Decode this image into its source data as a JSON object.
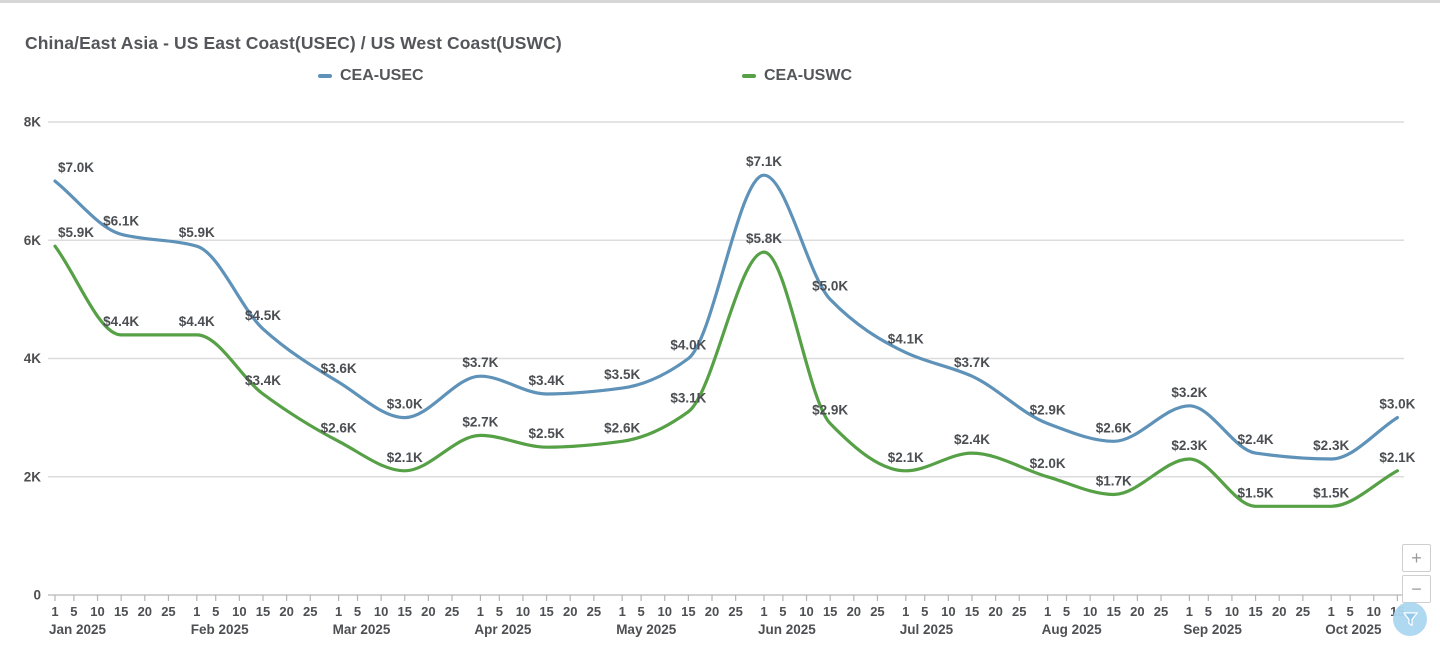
{
  "title": "China/East Asia - US East Coast(USEC) / US West Coast(USWC)",
  "colors": {
    "usec_line": "#5f92b8",
    "uswc_line": "#56a046",
    "grid": "#dcdcdc",
    "axis": "#c4c4c4",
    "tick": "#b5b5b5",
    "axis_text": "#4e4f52",
    "data_label": "#4b4e52",
    "fab_bg": "#abd6f1",
    "fab_glyph": "#8ec6ea"
  },
  "legend": {
    "items": [
      {
        "label": "CEA-USEC",
        "color": "#5f92b8"
      },
      {
        "label": "CEA-USWC",
        "color": "#56a046"
      }
    ]
  },
  "controls": {
    "zoom_in_label": "+",
    "zoom_out_label": "−",
    "filter_icon": "funnel-icon"
  },
  "chart_data": {
    "type": "line",
    "title": "China/East Asia - US East Coast(USEC) / US West Coast(USWC)",
    "xlabel": "",
    "ylabel": "",
    "ylim": [
      0,
      8000
    ],
    "grid": true,
    "legend_position": "top",
    "yticks": [
      {
        "value": 8000,
        "label": "8K"
      },
      {
        "value": 6000,
        "label": "6K"
      },
      {
        "value": 4000,
        "label": "4K"
      },
      {
        "value": 2000,
        "label": "2K"
      },
      {
        "value": 0,
        "label": "0"
      }
    ],
    "months": [
      {
        "label": "Jan 2025",
        "day_ticks": [
          1,
          5,
          10,
          15,
          20,
          25
        ]
      },
      {
        "label": "Feb 2025",
        "day_ticks": [
          1,
          5,
          10,
          15,
          20,
          25
        ]
      },
      {
        "label": "Mar 2025",
        "day_ticks": [
          1,
          5,
          10,
          15,
          20,
          25
        ]
      },
      {
        "label": "Apr 2025",
        "day_ticks": [
          1,
          5,
          10,
          15,
          20,
          25
        ]
      },
      {
        "label": "May 2025",
        "day_ticks": [
          1,
          5,
          10,
          15,
          20,
          25
        ]
      },
      {
        "label": "Jun 2025",
        "day_ticks": [
          1,
          5,
          10,
          15,
          20,
          25
        ]
      },
      {
        "label": "Jul 2025",
        "day_ticks": [
          1,
          5,
          10,
          15,
          20,
          25
        ]
      },
      {
        "label": "Aug 2025",
        "day_ticks": [
          1,
          5,
          10,
          15,
          20,
          25
        ]
      },
      {
        "label": "Sep 2025",
        "day_ticks": [
          1,
          5,
          10,
          15,
          20,
          25
        ]
      },
      {
        "label": "Oct 2025",
        "day_ticks": [
          1,
          5,
          10,
          15
        ]
      }
    ],
    "series": [
      {
        "name": "CEA-USEC",
        "color": "#5f92b8",
        "points": [
          {
            "month": "Jan 2025",
            "day": 1,
            "value": 7000,
            "label": "$7.0K"
          },
          {
            "month": "Jan 2025",
            "day": 15,
            "value": 6100,
            "label": "$6.1K"
          },
          {
            "month": "Feb 2025",
            "day": 1,
            "value": 5900,
            "label": "$5.9K"
          },
          {
            "month": "Feb 2025",
            "day": 15,
            "value": 4500,
            "label": "$4.5K"
          },
          {
            "month": "Mar 2025",
            "day": 1,
            "value": 3600,
            "label": "$3.6K"
          },
          {
            "month": "Mar 2025",
            "day": 15,
            "value": 3000,
            "label": "$3.0K"
          },
          {
            "month": "Apr 2025",
            "day": 1,
            "value": 3700,
            "label": "$3.7K"
          },
          {
            "month": "Apr 2025",
            "day": 15,
            "value": 3400,
            "label": "$3.4K"
          },
          {
            "month": "May 2025",
            "day": 1,
            "value": 3500,
            "label": "$3.5K"
          },
          {
            "month": "May 2025",
            "day": 15,
            "value": 4000,
            "label": "$4.0K"
          },
          {
            "month": "Jun 2025",
            "day": 1,
            "value": 7100,
            "label": "$7.1K"
          },
          {
            "month": "Jun 2025",
            "day": 15,
            "value": 5000,
            "label": "$5.0K"
          },
          {
            "month": "Jul 2025",
            "day": 1,
            "value": 4100,
            "label": "$4.1K"
          },
          {
            "month": "Jul 2025",
            "day": 15,
            "value": 3700,
            "label": "$3.7K"
          },
          {
            "month": "Aug 2025",
            "day": 1,
            "value": 2900,
            "label": "$2.9K"
          },
          {
            "month": "Aug 2025",
            "day": 15,
            "value": 2600,
            "label": "$2.6K"
          },
          {
            "month": "Sep 2025",
            "day": 1,
            "value": 3200,
            "label": "$3.2K"
          },
          {
            "month": "Sep 2025",
            "day": 15,
            "value": 2400,
            "label": "$2.4K"
          },
          {
            "month": "Oct 2025",
            "day": 1,
            "value": 2300,
            "label": "$2.3K"
          },
          {
            "month": "Oct 2025",
            "day": 15,
            "value": 3000,
            "label": "$3.0K"
          }
        ]
      },
      {
        "name": "CEA-USWC",
        "color": "#56a046",
        "points": [
          {
            "month": "Jan 2025",
            "day": 1,
            "value": 5900,
            "label": "$5.9K"
          },
          {
            "month": "Jan 2025",
            "day": 15,
            "value": 4400,
            "label": "$4.4K"
          },
          {
            "month": "Feb 2025",
            "day": 1,
            "value": 4400,
            "label": "$4.4K"
          },
          {
            "month": "Feb 2025",
            "day": 15,
            "value": 3400,
            "label": "$3.4K"
          },
          {
            "month": "Mar 2025",
            "day": 1,
            "value": 2600,
            "label": "$2.6K"
          },
          {
            "month": "Mar 2025",
            "day": 15,
            "value": 2100,
            "label": "$2.1K"
          },
          {
            "month": "Apr 2025",
            "day": 1,
            "value": 2700,
            "label": "$2.7K"
          },
          {
            "month": "Apr 2025",
            "day": 15,
            "value": 2500,
            "label": "$2.5K"
          },
          {
            "month": "May 2025",
            "day": 1,
            "value": 2600,
            "label": "$2.6K"
          },
          {
            "month": "May 2025",
            "day": 15,
            "value": 3100,
            "label": "$3.1K"
          },
          {
            "month": "Jun 2025",
            "day": 1,
            "value": 5800,
            "label": "$5.8K"
          },
          {
            "month": "Jun 2025",
            "day": 15,
            "value": 2900,
            "label": "$2.9K"
          },
          {
            "month": "Jul 2025",
            "day": 1,
            "value": 2100,
            "label": "$2.1K"
          },
          {
            "month": "Jul 2025",
            "day": 15,
            "value": 2400,
            "label": "$2.4K"
          },
          {
            "month": "Aug 2025",
            "day": 1,
            "value": 2000,
            "label": "$2.0K"
          },
          {
            "month": "Aug 2025",
            "day": 15,
            "value": 1700,
            "label": "$1.7K"
          },
          {
            "month": "Sep 2025",
            "day": 1,
            "value": 2300,
            "label": "$2.3K"
          },
          {
            "month": "Sep 2025",
            "day": 15,
            "value": 1500,
            "label": "$1.5K"
          },
          {
            "month": "Oct 2025",
            "day": 1,
            "value": 1500,
            "label": "$1.5K"
          },
          {
            "month": "Oct 2025",
            "day": 15,
            "value": 2100,
            "label": "$2.1K"
          }
        ]
      }
    ]
  }
}
